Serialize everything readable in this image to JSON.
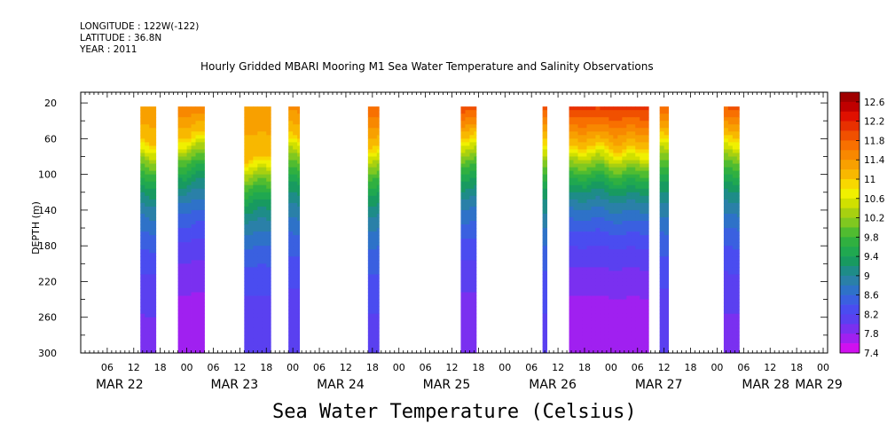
{
  "header": {
    "longitude": "LONGITUDE : 122W(-122)",
    "latitude": "LATITUDE : 36.8N",
    "year": "YEAR : 2011"
  },
  "title": "Hourly Gridded MBARI Mooring M1 Sea Water Temperature and Salinity Observations",
  "bottom_title": "Sea Water Temperature (Celsius)",
  "chart_data": {
    "type": "heatmap",
    "title": "Hourly Gridded MBARI Mooring M1 Sea Water Temperature and Salinity Observations",
    "subtitle": "Sea Water Temperature (Celsius)",
    "ylabel": "DEPTH (m)",
    "ylim": [
      300,
      8
    ],
    "y_ticks": [
      20,
      60,
      100,
      140,
      180,
      220,
      260,
      300
    ],
    "x_range_hours": [
      0,
      169
    ],
    "x_hour_labels": [
      "06",
      "12",
      "18",
      "00",
      "06",
      "12",
      "18",
      "00",
      "06",
      "12",
      "18",
      "00",
      "06",
      "12",
      "18",
      "00",
      "06",
      "12",
      "18",
      "00",
      "06",
      "12",
      "18",
      "00",
      "06",
      "12",
      "18",
      "00"
    ],
    "x_day_labels": [
      "MAR 22",
      "MAR 23",
      "MAR 24",
      "MAR 25",
      "MAR 26",
      "MAR 27",
      "MAR 28",
      "MAR 29"
    ],
    "colorbar": {
      "levels": [
        7.4,
        7.6,
        7.8,
        8.0,
        8.2,
        8.4,
        8.6,
        8.8,
        9.0,
        9.2,
        9.4,
        9.6,
        9.8,
        10.0,
        10.2,
        10.4,
        10.6,
        10.8,
        11.0,
        11.2,
        11.4,
        11.6,
        11.8,
        12.0,
        12.2,
        12.4,
        12.6,
        12.8
      ],
      "labels": [
        "12.6",
        "12.2",
        "11.8",
        "11.4",
        "11",
        "10.6",
        "10.2",
        "9.8",
        "9.4",
        "9",
        "8.6",
        "8.2",
        "7.8",
        "7.4"
      ],
      "colors": [
        "#d010f0",
        "#a020f0",
        "#7a30f0",
        "#5a40f0",
        "#4a4cf0",
        "#3a60e0",
        "#2e72c8",
        "#2a80a8",
        "#1e8c88",
        "#189a60",
        "#20a850",
        "#30b040",
        "#50bc30",
        "#80c820",
        "#a8d010",
        "#d0e000",
        "#f0f000",
        "#f8d800",
        "#f8b800",
        "#f8a000",
        "#f88800",
        "#f87000",
        "#f05000",
        "#e83000",
        "#e01000",
        "#c00000",
        "#a00000"
      ]
    },
    "segments": [
      {
        "start": 13.5,
        "end": 17.0,
        "surface_temp": 11.4,
        "thermocline_depth": 65,
        "deep_temp": 7.9
      },
      {
        "start": 22.0,
        "end": 28.0,
        "surface_temp": 11.6,
        "thermocline_depth": 55,
        "deep_temp": 7.6
      },
      {
        "start": 37.0,
        "end": 43.0,
        "surface_temp": 11.4,
        "thermocline_depth": 80,
        "deep_temp": 8.0
      },
      {
        "start": 47.0,
        "end": 49.5,
        "surface_temp": 11.5,
        "thermocline_depth": 60,
        "deep_temp": 8.0
      },
      {
        "start": 65.0,
        "end": 67.5,
        "surface_temp": 11.8,
        "thermocline_depth": 70,
        "deep_temp": 8.1
      },
      {
        "start": 86.0,
        "end": 89.5,
        "surface_temp": 12.0,
        "thermocline_depth": 55,
        "deep_temp": 7.8
      },
      {
        "start": 104.5,
        "end": 105.5,
        "surface_temp": 11.9,
        "thermocline_depth": 60,
        "deep_temp": 8.1
      },
      {
        "start": 110.5,
        "end": 128.5,
        "surface_temp": 12.1,
        "thermocline_depth": 70,
        "deep_temp": 7.6
      },
      {
        "start": 131.0,
        "end": 133.0,
        "surface_temp": 11.9,
        "thermocline_depth": 60,
        "deep_temp": 8.0
      },
      {
        "start": 145.5,
        "end": 149.0,
        "surface_temp": 11.9,
        "thermocline_depth": 60,
        "deep_temp": 7.9
      }
    ]
  }
}
